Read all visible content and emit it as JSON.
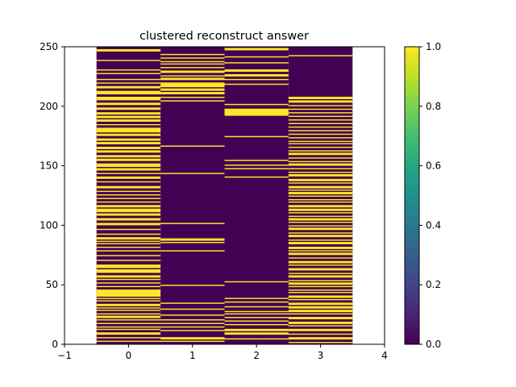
{
  "chart_data": {
    "type": "heatmap",
    "title": "clustered reconstruct answer",
    "xlabel": "",
    "ylabel": "",
    "xlim": [
      -1,
      4
    ],
    "ylim": [
      0,
      250
    ],
    "xticks": [
      -1,
      0,
      1,
      2,
      3,
      4
    ],
    "yticks": [
      0,
      50,
      100,
      150,
      200,
      250
    ],
    "grid": false,
    "columns": [
      0,
      1,
      2,
      3
    ],
    "rows": 250,
    "colormap": "viridis",
    "colorbar": {
      "ticks": [
        0.0,
        0.2,
        0.4,
        0.6,
        0.8,
        1.0
      ],
      "tick_labels": [
        "0.0",
        "0.2",
        "0.4",
        "0.6",
        "0.8",
        "1.0"
      ],
      "range": [
        0,
        1
      ]
    },
    "on_value_color": "#fde725",
    "off_value_color": "#440154",
    "series": [
      {
        "column": 0,
        "on_ranges": [
          [
            2,
            3
          ],
          [
            5,
            6
          ],
          [
            8,
            10
          ],
          [
            12,
            13
          ],
          [
            14,
            15
          ],
          [
            17,
            18
          ],
          [
            20,
            21
          ],
          [
            22,
            24
          ],
          [
            25,
            26
          ],
          [
            28,
            29
          ],
          [
            30,
            31
          ],
          [
            32,
            34
          ],
          [
            36,
            37
          ],
          [
            38,
            39
          ],
          [
            40,
            46
          ],
          [
            48,
            49
          ],
          [
            51,
            52
          ],
          [
            54,
            55
          ],
          [
            56,
            58
          ],
          [
            60,
            63
          ],
          [
            64,
            67
          ],
          [
            70,
            71
          ],
          [
            74,
            75
          ],
          [
            78,
            79
          ],
          [
            81,
            82
          ],
          [
            84,
            85
          ],
          [
            86,
            87
          ],
          [
            88,
            90
          ],
          [
            92,
            93
          ],
          [
            96,
            97
          ],
          [
            100,
            102
          ],
          [
            104,
            106
          ],
          [
            108,
            110
          ],
          [
            111,
            114
          ],
          [
            115,
            117
          ],
          [
            119,
            120
          ],
          [
            122,
            123
          ],
          [
            125,
            126
          ],
          [
            128,
            129
          ],
          [
            131,
            133
          ],
          [
            136,
            137
          ],
          [
            139,
            141
          ],
          [
            143,
            144
          ],
          [
            146,
            148
          ],
          [
            149,
            152
          ],
          [
            154,
            156
          ],
          [
            157,
            159
          ],
          [
            161,
            163
          ],
          [
            164,
            166
          ],
          [
            168,
            170
          ],
          [
            171,
            173
          ],
          [
            175,
            177
          ],
          [
            178,
            182
          ],
          [
            184,
            185
          ],
          [
            187,
            189
          ],
          [
            190,
            192
          ],
          [
            193,
            195
          ],
          [
            197,
            199
          ],
          [
            201,
            203
          ],
          [
            205,
            208
          ],
          [
            210,
            213
          ],
          [
            215,
            217
          ],
          [
            219,
            220
          ],
          [
            222,
            223
          ],
          [
            227,
            228
          ],
          [
            230,
            231
          ],
          [
            238,
            239
          ],
          [
            246,
            248
          ]
        ]
      },
      {
        "column": 1,
        "on_ranges": [
          [
            2,
            3
          ],
          [
            4,
            6
          ],
          [
            11,
            12
          ],
          [
            14,
            15
          ],
          [
            17,
            18
          ],
          [
            20,
            21
          ],
          [
            24,
            25
          ],
          [
            29,
            30
          ],
          [
            34,
            35
          ],
          [
            49,
            50
          ],
          [
            78,
            79
          ],
          [
            85,
            86
          ],
          [
            87,
            89
          ],
          [
            101,
            102
          ],
          [
            143,
            144
          ],
          [
            166,
            167
          ],
          [
            204,
            205
          ],
          [
            207,
            208
          ],
          [
            210,
            212
          ],
          [
            213,
            215
          ],
          [
            216,
            220
          ],
          [
            222,
            224
          ],
          [
            225,
            226
          ],
          [
            228,
            230
          ],
          [
            232,
            233
          ],
          [
            235,
            236
          ],
          [
            237,
            238
          ],
          [
            240,
            241
          ],
          [
            243,
            244
          ]
        ]
      },
      {
        "column": 2,
        "on_ranges": [
          [
            4,
            5
          ],
          [
            8,
            10
          ],
          [
            11,
            13
          ],
          [
            16,
            17
          ],
          [
            19,
            20
          ],
          [
            22,
            23
          ],
          [
            25,
            26
          ],
          [
            27,
            28
          ],
          [
            31,
            32
          ],
          [
            35,
            36
          ],
          [
            38,
            39
          ],
          [
            52,
            53
          ],
          [
            140,
            141
          ],
          [
            147,
            148
          ],
          [
            150,
            151
          ],
          [
            154,
            155
          ],
          [
            174,
            175
          ],
          [
            192,
            198
          ],
          [
            201,
            202
          ],
          [
            218,
            219
          ],
          [
            222,
            223
          ],
          [
            225,
            227
          ],
          [
            229,
            231
          ],
          [
            236,
            237
          ],
          [
            241,
            242
          ],
          [
            247,
            249
          ]
        ]
      },
      {
        "column": 3,
        "on_ranges": [
          [
            1,
            2
          ],
          [
            4,
            6
          ],
          [
            8,
            9
          ],
          [
            11,
            13
          ],
          [
            15,
            16
          ],
          [
            17,
            19
          ],
          [
            21,
            23
          ],
          [
            25,
            26
          ],
          [
            27,
            29
          ],
          [
            30,
            32
          ],
          [
            33,
            35
          ],
          [
            37,
            38
          ],
          [
            39,
            41
          ],
          [
            43,
            44
          ],
          [
            45,
            46
          ],
          [
            48,
            49
          ],
          [
            50,
            52
          ],
          [
            53,
            54
          ],
          [
            56,
            58
          ],
          [
            59,
            60
          ],
          [
            62,
            64
          ],
          [
            66,
            67
          ],
          [
            68,
            70
          ],
          [
            72,
            73
          ],
          [
            75,
            77
          ],
          [
            78,
            79
          ],
          [
            80,
            82
          ],
          [
            84,
            86
          ],
          [
            87,
            88
          ],
          [
            90,
            92
          ],
          [
            93,
            94
          ],
          [
            96,
            98
          ],
          [
            99,
            100
          ],
          [
            102,
            103
          ],
          [
            104,
            106
          ],
          [
            107,
            108
          ],
          [
            110,
            111
          ],
          [
            112,
            114
          ],
          [
            115,
            117
          ],
          [
            119,
            120
          ],
          [
            121,
            122
          ],
          [
            124,
            125
          ],
          [
            126,
            128
          ],
          [
            129,
            130
          ],
          [
            131,
            133
          ],
          [
            135,
            136
          ],
          [
            137,
            139
          ],
          [
            141,
            143
          ],
          [
            144,
            145
          ],
          [
            147,
            148
          ],
          [
            150,
            152
          ],
          [
            153,
            154
          ],
          [
            156,
            157
          ],
          [
            159,
            161
          ],
          [
            162,
            163
          ],
          [
            165,
            166
          ],
          [
            168,
            169
          ],
          [
            170,
            171
          ],
          [
            173,
            174
          ],
          [
            176,
            177
          ],
          [
            179,
            180
          ],
          [
            182,
            183
          ],
          [
            185,
            186
          ],
          [
            188,
            189
          ],
          [
            191,
            192
          ],
          [
            194,
            195
          ],
          [
            197,
            198
          ],
          [
            200,
            201
          ],
          [
            203,
            205
          ],
          [
            206,
            208
          ],
          [
            242,
            243
          ]
        ]
      }
    ]
  }
}
